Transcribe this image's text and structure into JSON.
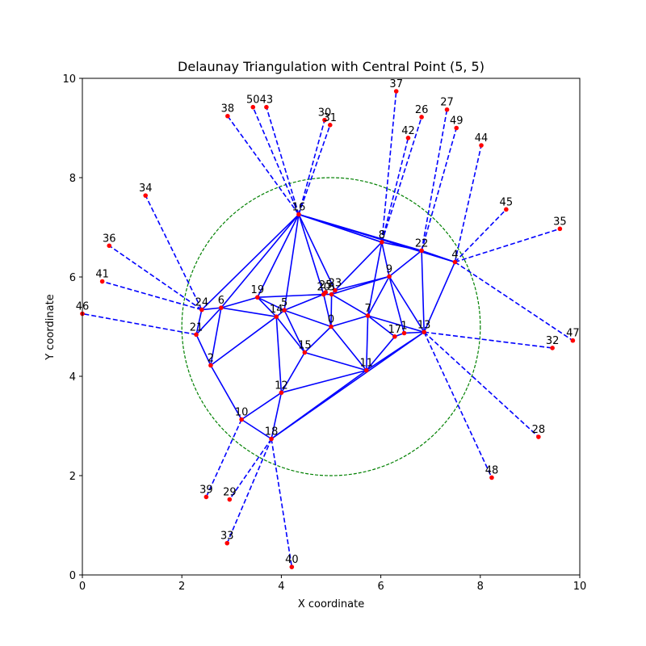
{
  "chart_data": {
    "type": "scatter",
    "title": "Delaunay Triangulation with Central Point (5, 5)",
    "xlabel": "X coordinate",
    "ylabel": "Y coordinate",
    "xlim": [
      0,
      10
    ],
    "ylim": [
      0,
      10
    ],
    "xticks": [
      "0",
      "2",
      "4",
      "6",
      "8",
      "10"
    ],
    "yticks": [
      "0",
      "2",
      "4",
      "6",
      "8",
      "10"
    ],
    "grid": false,
    "colors": {
      "points": "#ff0000",
      "edges": "#0000ff",
      "circle": "#008000"
    },
    "circle": {
      "center": [
        5,
        5
      ],
      "radius": 3
    },
    "points": [
      {
        "label": "0",
        "x": 5.0,
        "y": 5.0
      },
      {
        "label": "1",
        "x": 6.47,
        "y": 4.87
      },
      {
        "label": "2",
        "x": 2.58,
        "y": 4.22
      },
      {
        "label": "3",
        "x": 5.01,
        "y": 5.65
      },
      {
        "label": "4",
        "x": 7.49,
        "y": 6.3
      },
      {
        "label": "5",
        "x": 4.06,
        "y": 5.33
      },
      {
        "label": "6",
        "x": 2.79,
        "y": 5.38
      },
      {
        "label": "7",
        "x": 5.74,
        "y": 5.22
      },
      {
        "label": "8",
        "x": 6.02,
        "y": 6.7
      },
      {
        "label": "9",
        "x": 6.17,
        "y": 6.01
      },
      {
        "label": "10",
        "x": 3.2,
        "y": 3.13
      },
      {
        "label": "11",
        "x": 5.71,
        "y": 4.12
      },
      {
        "label": "12",
        "x": 4.0,
        "y": 3.67
      },
      {
        "label": "13",
        "x": 6.87,
        "y": 4.89
      },
      {
        "label": "14",
        "x": 3.9,
        "y": 5.2
      },
      {
        "label": "15",
        "x": 4.47,
        "y": 4.48
      },
      {
        "label": "16",
        "x": 4.35,
        "y": 7.26
      },
      {
        "label": "17",
        "x": 6.28,
        "y": 4.8
      },
      {
        "label": "18",
        "x": 3.8,
        "y": 2.74
      },
      {
        "label": "19",
        "x": 3.52,
        "y": 5.59
      },
      {
        "label": "20",
        "x": 4.85,
        "y": 5.65
      },
      {
        "label": "21",
        "x": 2.29,
        "y": 4.84
      },
      {
        "label": "22",
        "x": 6.82,
        "y": 6.53
      },
      {
        "label": "23",
        "x": 5.08,
        "y": 5.73
      },
      {
        "label": "24",
        "x": 2.4,
        "y": 5.34
      },
      {
        "label": "25",
        "x": 4.89,
        "y": 5.69
      },
      {
        "label": "26",
        "x": 6.82,
        "y": 9.22
      },
      {
        "label": "27",
        "x": 7.33,
        "y": 9.37
      },
      {
        "label": "28",
        "x": 9.17,
        "y": 2.78
      },
      {
        "label": "29",
        "x": 2.96,
        "y": 1.52
      },
      {
        "label": "30",
        "x": 4.87,
        "y": 9.16
      },
      {
        "label": "31",
        "x": 4.98,
        "y": 9.06
      },
      {
        "label": "32",
        "x": 9.45,
        "y": 4.57
      },
      {
        "label": "33",
        "x": 2.91,
        "y": 0.64
      },
      {
        "label": "34",
        "x": 1.27,
        "y": 7.64
      },
      {
        "label": "35",
        "x": 9.6,
        "y": 6.97
      },
      {
        "label": "36",
        "x": 0.54,
        "y": 6.63
      },
      {
        "label": "37",
        "x": 6.31,
        "y": 9.74
      },
      {
        "label": "38",
        "x": 2.92,
        "y": 9.24
      },
      {
        "label": "39",
        "x": 2.49,
        "y": 1.57
      },
      {
        "label": "40",
        "x": 4.21,
        "y": 0.16
      },
      {
        "label": "41",
        "x": 0.4,
        "y": 5.91
      },
      {
        "label": "42",
        "x": 6.55,
        "y": 8.8
      },
      {
        "label": "43",
        "x": 3.7,
        "y": 9.42
      },
      {
        "label": "44",
        "x": 8.02,
        "y": 8.65
      },
      {
        "label": "45",
        "x": 8.52,
        "y": 7.36
      },
      {
        "label": "46",
        "x": 0.0,
        "y": 5.26
      },
      {
        "label": "47",
        "x": 9.86,
        "y": 4.72
      },
      {
        "label": "48",
        "x": 8.23,
        "y": 1.96
      },
      {
        "label": "49",
        "x": 7.52,
        "y": 9.0
      },
      {
        "label": "50",
        "x": 3.43,
        "y": 9.42
      }
    ],
    "solid_edges": [
      [
        16,
        8
      ],
      [
        16,
        22
      ],
      [
        16,
        4
      ],
      [
        8,
        22
      ],
      [
        22,
        4
      ],
      [
        16,
        24
      ],
      [
        16,
        6
      ],
      [
        16,
        19
      ],
      [
        16,
        5
      ],
      [
        16,
        20
      ],
      [
        16,
        23
      ],
      [
        16,
        8
      ],
      [
        8,
        9
      ],
      [
        8,
        23
      ],
      [
        8,
        7
      ],
      [
        22,
        9
      ],
      [
        22,
        13
      ],
      [
        4,
        13
      ],
      [
        9,
        7
      ],
      [
        9,
        1
      ],
      [
        9,
        13
      ],
      [
        9,
        3
      ],
      [
        9,
        23
      ],
      [
        24,
        6
      ],
      [
        24,
        21
      ],
      [
        6,
        19
      ],
      [
        6,
        14
      ],
      [
        6,
        2
      ],
      [
        21,
        2
      ],
      [
        21,
        6
      ],
      [
        19,
        20
      ],
      [
        19,
        14
      ],
      [
        19,
        5
      ],
      [
        5,
        14
      ],
      [
        5,
        20
      ],
      [
        5,
        0
      ],
      [
        5,
        15
      ],
      [
        14,
        15
      ],
      [
        14,
        12
      ],
      [
        14,
        2
      ],
      [
        20,
        3
      ],
      [
        20,
        0
      ],
      [
        3,
        23
      ],
      [
        3,
        0
      ],
      [
        3,
        7
      ],
      [
        0,
        7
      ],
      [
        0,
        15
      ],
      [
        0,
        11
      ],
      [
        7,
        17
      ],
      [
        7,
        11
      ],
      [
        17,
        1
      ],
      [
        1,
        13
      ],
      [
        17,
        11
      ],
      [
        11,
        13
      ],
      [
        11,
        15
      ],
      [
        11,
        12
      ],
      [
        11,
        18
      ],
      [
        15,
        12
      ],
      [
        12,
        10
      ],
      [
        12,
        18
      ],
      [
        2,
        10
      ],
      [
        10,
        18
      ],
      [
        18,
        13
      ],
      [
        7,
        13
      ]
    ],
    "dashed_edges": [
      [
        16,
        38
      ],
      [
        16,
        50
      ],
      [
        16,
        43
      ],
      [
        16,
        30
      ],
      [
        16,
        31
      ],
      [
        8,
        37
      ],
      [
        8,
        42
      ],
      [
        8,
        26
      ],
      [
        22,
        27
      ],
      [
        22,
        49
      ],
      [
        4,
        44
      ],
      [
        4,
        45
      ],
      [
        4,
        35
      ],
      [
        4,
        47
      ],
      [
        13,
        32
      ],
      [
        13,
        28
      ],
      [
        13,
        48
      ],
      [
        24,
        34
      ],
      [
        24,
        36
      ],
      [
        24,
        41
      ],
      [
        21,
        46
      ],
      [
        10,
        39
      ],
      [
        18,
        29
      ],
      [
        18,
        33
      ],
      [
        18,
        40
      ]
    ]
  }
}
